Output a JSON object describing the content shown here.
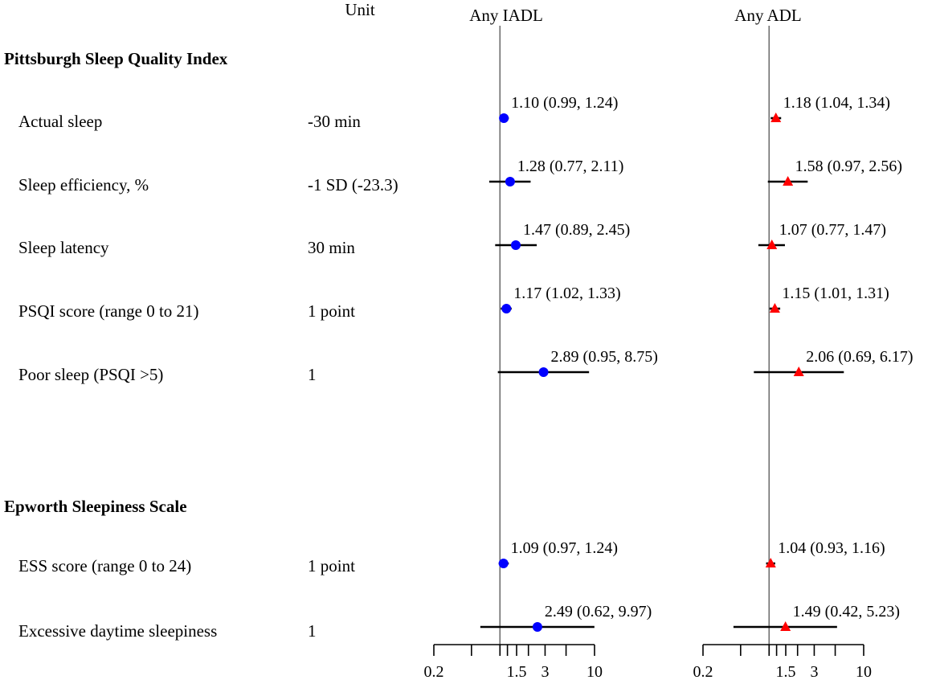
{
  "headers": {
    "unit": "Unit",
    "panel1": "Any IADL",
    "panel2": "Any ADL"
  },
  "sections": [
    {
      "title": "Pittsburgh Sleep Quality Index"
    },
    {
      "title": "Epworth Sleepiness Scale"
    }
  ],
  "rows": [
    {
      "label": "Actual sleep",
      "unit": "-30 min"
    },
    {
      "label": "Sleep efficiency, %",
      "unit": "-1 SD (-23.3)"
    },
    {
      "label": "Sleep latency",
      "unit": "30 min"
    },
    {
      "label": "PSQI score (range 0 to 21)",
      "unit": "1 point"
    },
    {
      "label": "Poor sleep (PSQI >5)",
      "unit": "1"
    },
    {
      "label": "ESS score (range 0 to 24)",
      "unit": "1 point"
    },
    {
      "label": "Excessive daytime sleepiness",
      "unit": "1"
    }
  ],
  "chart_data": {
    "type": "forest",
    "scale": "log",
    "xlim": [
      0.2,
      10
    ],
    "reference_line": 1,
    "ticks": [
      0.2,
      0.5,
      1,
      1.2,
      1.5,
      2,
      3,
      5,
      10
    ],
    "tick_labels": [
      {
        "value": 0.2,
        "label": "0.2"
      },
      {
        "value": 1.5,
        "label": "1.5"
      },
      {
        "value": 3,
        "label": "3"
      },
      {
        "value": 10,
        "label": "10"
      }
    ],
    "series": [
      {
        "name": "Any IADL",
        "marker": "circle",
        "color": "#0000ff",
        "points": [
          {
            "or": 1.1,
            "lo": 0.99,
            "hi": 1.24,
            "label": "1.10 (0.99, 1.24)"
          },
          {
            "or": 1.28,
            "lo": 0.77,
            "hi": 2.11,
            "label": "1.28 (0.77, 2.11)"
          },
          {
            "or": 1.47,
            "lo": 0.89,
            "hi": 2.45,
            "label": "1.47 (0.89, 2.45)"
          },
          {
            "or": 1.17,
            "lo": 1.02,
            "hi": 1.33,
            "label": "1.17 (1.02, 1.33)"
          },
          {
            "or": 2.89,
            "lo": 0.95,
            "hi": 8.75,
            "label": "2.89 (0.95, 8.75)"
          },
          {
            "or": 1.09,
            "lo": 0.97,
            "hi": 1.24,
            "label": "1.09 (0.97, 1.24)"
          },
          {
            "or": 2.49,
            "lo": 0.62,
            "hi": 9.97,
            "label": "2.49 (0.62, 9.97)"
          }
        ]
      },
      {
        "name": "Any ADL",
        "marker": "triangle",
        "color": "#ff0000",
        "points": [
          {
            "or": 1.18,
            "lo": 1.04,
            "hi": 1.34,
            "label": "1.18 (1.04, 1.34)"
          },
          {
            "or": 1.58,
            "lo": 0.97,
            "hi": 2.56,
            "label": "1.58 (0.97, 2.56)"
          },
          {
            "or": 1.07,
            "lo": 0.77,
            "hi": 1.47,
            "label": "1.07 (0.77, 1.47)"
          },
          {
            "or": 1.15,
            "lo": 1.01,
            "hi": 1.31,
            "label": "1.15 (1.01, 1.31)"
          },
          {
            "or": 2.06,
            "lo": 0.69,
            "hi": 6.17,
            "label": "2.06 (0.69, 6.17)"
          },
          {
            "or": 1.04,
            "lo": 0.93,
            "hi": 1.16,
            "label": "1.04 (0.93, 1.16)"
          },
          {
            "or": 1.49,
            "lo": 0.42,
            "hi": 5.23,
            "label": "1.49 (0.42, 5.23)"
          }
        ]
      }
    ]
  }
}
